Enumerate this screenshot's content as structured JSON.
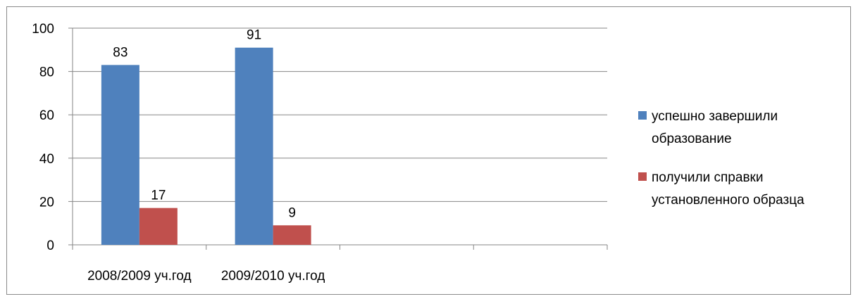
{
  "chart_data": {
    "type": "bar",
    "categories": [
      "2008/2009 уч.год",
      "2009/2010 уч.год",
      "",
      ""
    ],
    "series": [
      {
        "name": "успешно завершили образование",
        "name_lines": [
          "успешно завершили",
          "образование"
        ],
        "values": [
          83,
          91,
          null,
          null
        ],
        "color": "#4f81bd"
      },
      {
        "name": "получили справки установленного образца",
        "name_lines": [
          "получили справки",
          "установленного образца"
        ],
        "values": [
          17,
          9,
          null,
          null
        ],
        "color": "#c0504d"
      }
    ],
    "y_ticks": [
      "0",
      "20",
      "40",
      "60",
      "80",
      "100"
    ],
    "ylim": [
      0,
      100
    ],
    "grid": true,
    "legend_position": "right",
    "data_labels": true
  }
}
